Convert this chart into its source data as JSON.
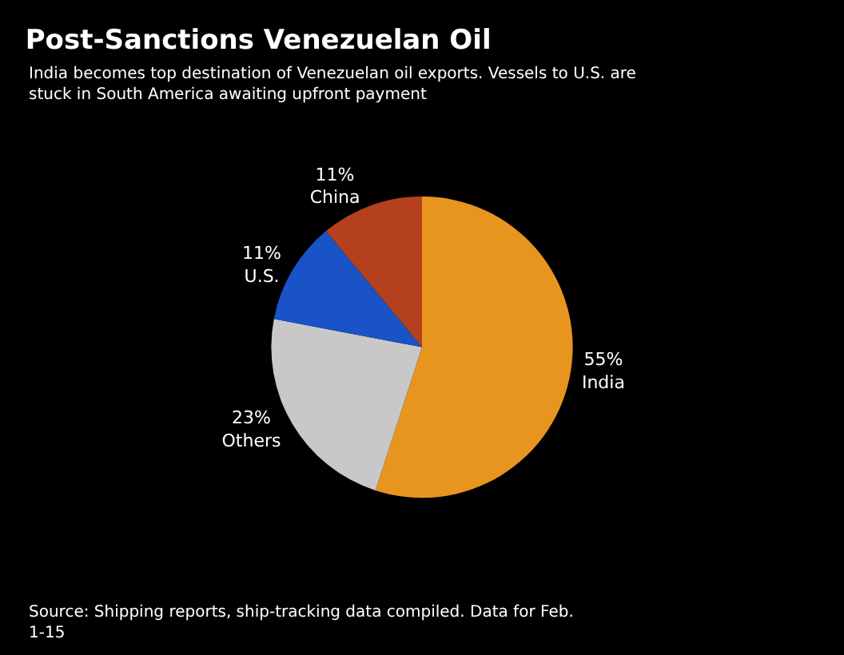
{
  "chart_data": {
    "type": "pie",
    "title": "Post-Sanctions Venezuelan Oil",
    "subtitle": "India becomes top destination of Venezuelan oil exports. Vessels to U.S. are stuck in South America awaiting upfront payment",
    "categories": [
      "India",
      "Others",
      "U.S.",
      "China"
    ],
    "values": [
      55,
      23,
      11,
      11
    ],
    "value_labels": [
      "55%",
      "23%",
      "11%",
      "11%"
    ],
    "colors": [
      "#e8951f",
      "#c8c8c8",
      "#1a52c8",
      "#b5401d"
    ],
    "annotations": [
      "Source: Shipping reports, ship-tracking data compiled. Data for Feb. 1-15"
    ]
  }
}
